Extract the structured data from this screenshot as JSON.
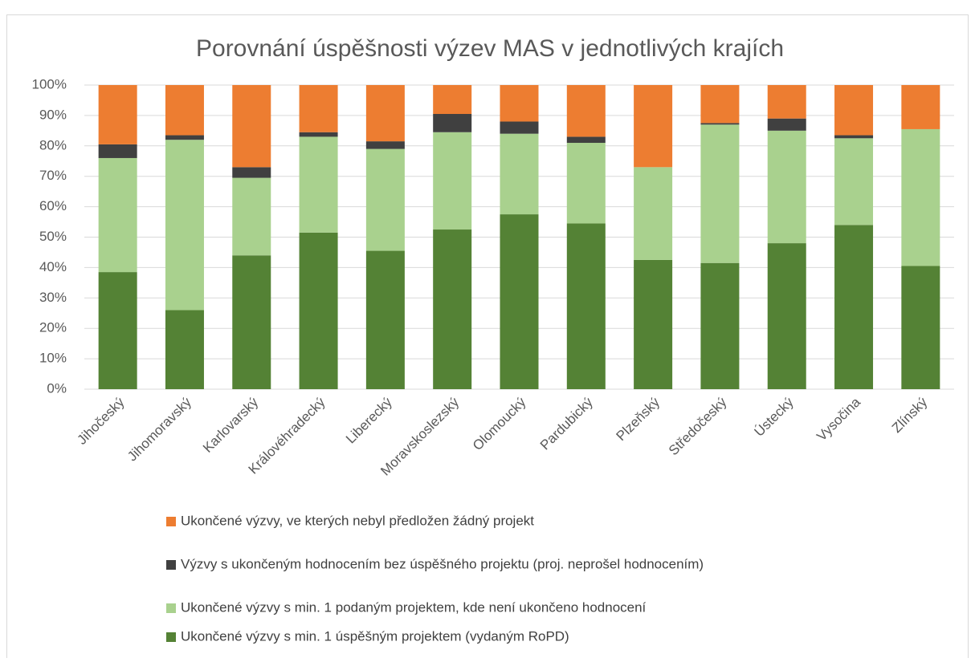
{
  "chart_data": {
    "type": "bar",
    "stacked": true,
    "title": "Porovnání úspěšnosti výzev  MAS v jednotlivých krajích",
    "categories": [
      "Jihočeský",
      "Jihomoravský",
      "Karlovarský",
      "Královéhradecký",
      "Liberecký",
      "Moravskoslezský",
      "Olomoucký",
      "Pardubický",
      "Plzeňský",
      "Středočeský",
      "Ústecký",
      "Vysočina",
      "Zlínský"
    ],
    "series": [
      {
        "name": "Ukončené výzvy s min. 1 úspěšným projektem (vydaným RoPD)",
        "color": "#548235",
        "values": [
          38.5,
          26,
          44,
          51.5,
          45.5,
          52.5,
          57.5,
          54.5,
          42.5,
          41.5,
          48,
          54,
          40.5
        ]
      },
      {
        "name": "Ukončené výzvy s min. 1 podaným projektem, kde není ukončeno hodnocení",
        "color": "#a9d18e",
        "values": [
          37.5,
          56,
          25.5,
          31.5,
          33.5,
          32,
          26.5,
          26.5,
          30.5,
          45.5,
          37,
          28.5,
          45
        ]
      },
      {
        "name": "Výzvy s ukončeným hodnocením bez úspěšného projektu (proj. neprošel hodnocením)",
        "color": "#404040",
        "values": [
          4.5,
          1.5,
          3.5,
          1.5,
          2.5,
          6,
          4,
          2,
          0,
          0.5,
          4,
          1,
          0
        ]
      },
      {
        "name": "Ukončené výzvy, ve kterých nebyl předložen žádný projekt",
        "color": "#ed7d31",
        "values": [
          19.5,
          16.5,
          27,
          15.5,
          18.5,
          9.5,
          12,
          17,
          27,
          12.5,
          11,
          16.5,
          14.5
        ]
      }
    ],
    "ylim": [
      0,
      100
    ],
    "yticks": [
      {
        "value": 0,
        "label": "0%"
      },
      {
        "value": 10,
        "label": "10%"
      },
      {
        "value": 20,
        "label": "20%"
      },
      {
        "value": 30,
        "label": "30%"
      },
      {
        "value": 40,
        "label": "40%"
      },
      {
        "value": 50,
        "label": "50%"
      },
      {
        "value": 60,
        "label": "60%"
      },
      {
        "value": 70,
        "label": "70%"
      },
      {
        "value": 80,
        "label": "80%"
      },
      {
        "value": 90,
        "label": "90%"
      },
      {
        "value": 100,
        "label": "100%"
      }
    ],
    "grid": true,
    "legend": "bottom"
  }
}
